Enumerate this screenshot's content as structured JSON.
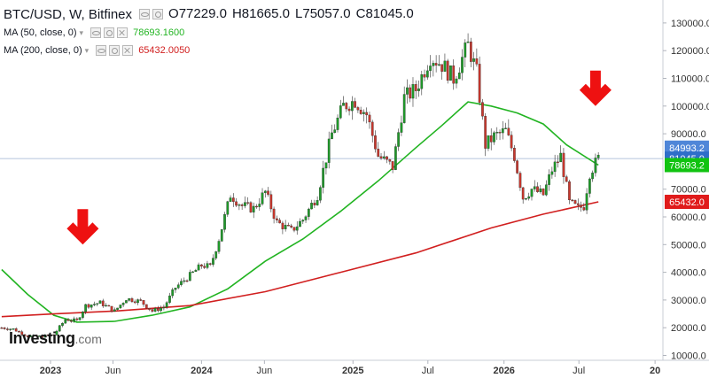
{
  "header": {
    "symbol": "BTC/USD, W, Bitfinex",
    "ohlc": [
      {
        "key": "O",
        "value": "77229.0"
      },
      {
        "key": "H",
        "value": "81665.0"
      },
      {
        "key": "L",
        "value": "75057.0"
      },
      {
        "key": "C",
        "value": "81045.0"
      }
    ]
  },
  "indicators": [
    {
      "label": "MA (50, close, 0)",
      "value": "78693.1600",
      "color": "#22b422"
    },
    {
      "label": "MA (200, close, 0)",
      "value": "65432.0050",
      "color": "#d11f1f"
    }
  ],
  "logo": {
    "main": "Investing",
    "domain": ".com"
  },
  "price_tags": [
    {
      "text": "84993.2",
      "value": 84993.2,
      "bg": "#4f86d8",
      "fg": "#ffffff"
    },
    {
      "text": "81045.0",
      "value": 81045.0,
      "bg": "#2f6ec9",
      "fg": "#ffffff"
    },
    {
      "text": "78693.2",
      "value": 78693.2,
      "bg": "#11c311",
      "fg": "#ffffff"
    },
    {
      "text": "65432.0",
      "value": 65432.0,
      "bg": "#e01b1b",
      "fg": "#ffffff"
    }
  ],
  "chart_data": {
    "type": "candlestick",
    "symbol": "BTC/USD",
    "interval": "W",
    "exchange": "Bitfinex",
    "ylim": [
      10000,
      135000
    ],
    "y_ticks": [
      10000,
      20000,
      30000,
      40000,
      50000,
      60000,
      70000,
      90000,
      100000,
      110000,
      120000,
      130000
    ],
    "y_tick_labels": [
      "10000.0",
      "20000.0",
      "30000.0",
      "40000.0",
      "50000.0",
      "60000.0",
      "70000.0",
      "90000.0",
      "100000.0",
      "110000.0",
      "120000.0",
      "130000.0"
    ],
    "x_ticks": [
      {
        "label": "2023",
        "date": "2023-01-01",
        "bold": true
      },
      {
        "label": "Jun",
        "date": "2023-06-01",
        "bold": false
      },
      {
        "label": "2024",
        "date": "2024-01-01",
        "bold": true
      },
      {
        "label": "Jun",
        "date": "2024-06-01",
        "bold": false
      },
      {
        "label": "2025",
        "date": "2025-01-01",
        "bold": true
      },
      {
        "label": "Jul",
        "date": "2025-07-01",
        "bold": false
      },
      {
        "label": "2026",
        "date": "2026-01-01",
        "bold": true
      },
      {
        "label": "Jul",
        "date": "2026-07-01",
        "bold": false
      },
      {
        "label": "20",
        "date": "2027-01-01",
        "bold": true
      }
    ],
    "x_range": [
      "2022-09-01",
      "2027-01-20"
    ],
    "close_points": [
      [
        "2022-09-05",
        20000
      ],
      [
        "2022-10-03",
        19500
      ],
      [
        "2022-11-07",
        17000
      ],
      [
        "2022-12-05",
        16800
      ],
      [
        "2023-01-09",
        17500
      ],
      [
        "2023-02-06",
        23000
      ],
      [
        "2023-03-06",
        22500
      ],
      [
        "2023-03-27",
        28000
      ],
      [
        "2023-05-01",
        29000
      ],
      [
        "2023-06-05",
        26000
      ],
      [
        "2023-07-03",
        30500
      ],
      [
        "2023-08-07",
        29500
      ],
      [
        "2023-09-04",
        26000
      ],
      [
        "2023-10-02",
        27500
      ],
      [
        "2023-10-30",
        34500
      ],
      [
        "2023-11-27",
        38000
      ],
      [
        "2024-01-01",
        42500
      ],
      [
        "2024-01-22",
        42000
      ],
      [
        "2024-02-12",
        52000
      ],
      [
        "2024-03-11",
        68000
      ],
      [
        "2024-04-08",
        64000
      ],
      [
        "2024-05-06",
        63000
      ],
      [
        "2024-06-03",
        69000
      ],
      [
        "2024-07-01",
        58000
      ],
      [
        "2024-08-05",
        55000
      ],
      [
        "2024-09-02",
        59000
      ],
      [
        "2024-10-07",
        68000
      ],
      [
        "2024-11-11",
        90000
      ],
      [
        "2024-12-09",
        100000
      ],
      [
        "2025-01-06",
        102000
      ],
      [
        "2025-02-03",
        97000
      ],
      [
        "2025-03-03",
        82000
      ],
      [
        "2025-04-07",
        78000
      ],
      [
        "2025-05-05",
        103000
      ],
      [
        "2025-06-02",
        106000
      ],
      [
        "2025-07-07",
        118000
      ],
      [
        "2025-08-04",
        115000
      ],
      [
        "2025-09-01",
        110000
      ],
      [
        "2025-10-06",
        122000
      ],
      [
        "2025-10-27",
        112000
      ],
      [
        "2025-11-17",
        86000
      ],
      [
        "2025-12-08",
        89000
      ],
      [
        "2026-01-05",
        91000
      ],
      [
        "2026-01-26",
        82000
      ],
      [
        "2026-02-16",
        67000
      ],
      [
        "2026-03-09",
        70000
      ],
      [
        "2026-04-06",
        68000
      ],
      [
        "2026-04-27",
        77000
      ],
      [
        "2026-05-18",
        82000
      ],
      [
        "2026-06-08",
        65000
      ],
      [
        "2026-06-29",
        63000
      ],
      [
        "2026-07-13",
        64000
      ],
      [
        "2026-07-27",
        76000
      ],
      [
        "2026-08-17",
        81045
      ]
    ],
    "series": [
      {
        "name": "MA (50, close, 0)",
        "color": "#22b422",
        "points": [
          [
            "2022-09-05",
            41000
          ],
          [
            "2022-11-07",
            32000
          ],
          [
            "2023-01-09",
            24500
          ],
          [
            "2023-03-06",
            22000
          ],
          [
            "2023-06-05",
            22300
          ],
          [
            "2023-09-04",
            24500
          ],
          [
            "2023-12-04",
            27500
          ],
          [
            "2024-03-04",
            34000
          ],
          [
            "2024-06-03",
            44000
          ],
          [
            "2024-09-02",
            52000
          ],
          [
            "2024-12-02",
            62000
          ],
          [
            "2025-03-03",
            73000
          ],
          [
            "2025-06-02",
            85000
          ],
          [
            "2025-08-04",
            93000
          ],
          [
            "2025-10-06",
            101500
          ],
          [
            "2025-12-01",
            100000
          ],
          [
            "2026-02-02",
            97500
          ],
          [
            "2026-04-06",
            93500
          ],
          [
            "2026-06-01",
            86000
          ],
          [
            "2026-08-17",
            78693.2
          ]
        ]
      },
      {
        "name": "MA (200, close, 0)",
        "color": "#d11f1f",
        "points": [
          [
            "2022-09-05",
            24000
          ],
          [
            "2023-01-09",
            25000
          ],
          [
            "2023-06-05",
            26000
          ],
          [
            "2023-12-04",
            28000
          ],
          [
            "2024-06-03",
            33000
          ],
          [
            "2024-12-02",
            40000
          ],
          [
            "2025-06-02",
            47000
          ],
          [
            "2025-12-01",
            56000
          ],
          [
            "2026-04-06",
            61000
          ],
          [
            "2026-08-17",
            65432
          ]
        ]
      }
    ],
    "annotations": [
      {
        "type": "down-arrow",
        "date": "2023-03-20",
        "value": 50000,
        "color": "#ee1111"
      },
      {
        "type": "down-arrow",
        "date": "2026-08-10",
        "value": 100000,
        "color": "#ee1111"
      }
    ],
    "last_price_line": 81045.0
  }
}
